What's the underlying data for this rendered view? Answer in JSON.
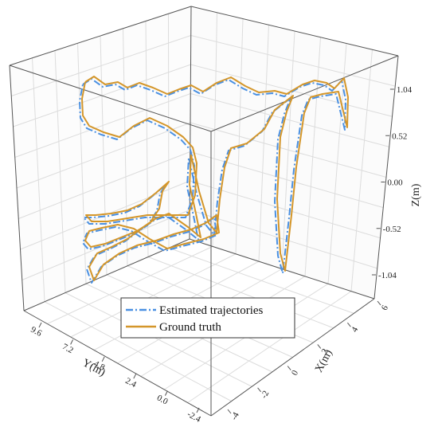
{
  "chart_data": {
    "type": "line",
    "title": "",
    "axes": {
      "x": {
        "label": "X(m)",
        "ticks": [
          "6",
          "4",
          "2",
          "0",
          "-2",
          "-4"
        ],
        "range": [
          -4,
          6
        ]
      },
      "y": {
        "label": "Y(m)",
        "ticks": [
          "9.6",
          "7.2",
          "4.8",
          "2.4",
          "0.0",
          "-2.4"
        ],
        "range": [
          -2.4,
          9.6
        ]
      },
      "z": {
        "label": "Z(m)",
        "ticks": [
          "1.04",
          "0.52",
          "0.00",
          "-0.52",
          "-1.04"
        ],
        "range": [
          -1.04,
          1.04
        ]
      }
    },
    "grid": true,
    "legend_position": "bottom-center",
    "series": [
      {
        "name": "Estimated trajectories",
        "color": "#4a90e2",
        "style": "dash-dot"
      },
      {
        "name": "Ground truth",
        "color": "#d4962a",
        "style": "solid"
      }
    ],
    "trajectory_projection": [
      [
        107,
        103
      ],
      [
        118,
        96
      ],
      [
        132,
        106
      ],
      [
        148,
        103
      ],
      [
        160,
        110
      ],
      [
        175,
        104
      ],
      [
        192,
        110
      ],
      [
        210,
        118
      ],
      [
        225,
        112
      ],
      [
        240,
        107
      ],
      [
        255,
        115
      ],
      [
        272,
        104
      ],
      [
        290,
        97
      ],
      [
        308,
        108
      ],
      [
        325,
        116
      ],
      [
        345,
        114
      ],
      [
        360,
        118
      ],
      [
        380,
        106
      ],
      [
        395,
        101
      ],
      [
        410,
        104
      ],
      [
        420,
        111
      ],
      [
        432,
        98
      ],
      [
        437,
        122
      ],
      [
        436,
        160
      ],
      [
        425,
        115
      ],
      [
        405,
        118
      ],
      [
        390,
        122
      ],
      [
        382,
        142
      ],
      [
        372,
        210
      ],
      [
        366,
        270
      ],
      [
        358,
        340
      ],
      [
        352,
        318
      ],
      [
        348,
        250
      ],
      [
        352,
        172
      ],
      [
        360,
        140
      ],
      [
        368,
        120
      ],
      [
        345,
        138
      ],
      [
        332,
        162
      ],
      [
        310,
        180
      ],
      [
        290,
        186
      ],
      [
        282,
        210
      ],
      [
        276,
        250
      ],
      [
        272,
        292
      ],
      [
        262,
        280
      ],
      [
        250,
        240
      ],
      [
        240,
        195
      ],
      [
        238,
        232
      ],
      [
        246,
        268
      ],
      [
        252,
        298
      ],
      [
        236,
        285
      ],
      [
        212,
        268
      ],
      [
        196,
        274
      ],
      [
        180,
        285
      ],
      [
        160,
        300
      ],
      [
        140,
        310
      ],
      [
        122,
        318
      ],
      [
        112,
        335
      ],
      [
        118,
        352
      ],
      [
        130,
        332
      ],
      [
        150,
        318
      ],
      [
        172,
        308
      ],
      [
        196,
        302
      ],
      [
        218,
        294
      ],
      [
        240,
        288
      ],
      [
        258,
        280
      ],
      [
        272,
        270
      ],
      [
        275,
        292
      ],
      [
        256,
        300
      ],
      [
        232,
        306
      ],
      [
        210,
        312
      ],
      [
        188,
        300
      ],
      [
        168,
        287
      ],
      [
        148,
        282
      ],
      [
        128,
        286
      ],
      [
        112,
        290
      ],
      [
        107,
        302
      ],
      [
        114,
        310
      ],
      [
        132,
        306
      ],
      [
        152,
        298
      ],
      [
        172,
        290
      ],
      [
        188,
        280
      ],
      [
        200,
        262
      ],
      [
        204,
        240
      ],
      [
        212,
        228
      ],
      [
        196,
        242
      ],
      [
        178,
        256
      ],
      [
        160,
        264
      ],
      [
        140,
        268
      ],
      [
        120,
        270
      ],
      [
        108,
        270
      ],
      [
        115,
        278
      ],
      [
        135,
        278
      ],
      [
        160,
        274
      ],
      [
        185,
        270
      ],
      [
        210,
        270
      ],
      [
        236,
        270
      ],
      [
        245,
        245
      ],
      [
        247,
        205
      ],
      [
        242,
        185
      ],
      [
        230,
        172
      ],
      [
        210,
        158
      ],
      [
        188,
        148
      ],
      [
        168,
        158
      ],
      [
        150,
        172
      ],
      [
        130,
        166
      ],
      [
        112,
        158
      ],
      [
        104,
        145
      ],
      [
        103,
        124
      ],
      [
        107,
        103
      ]
    ]
  }
}
